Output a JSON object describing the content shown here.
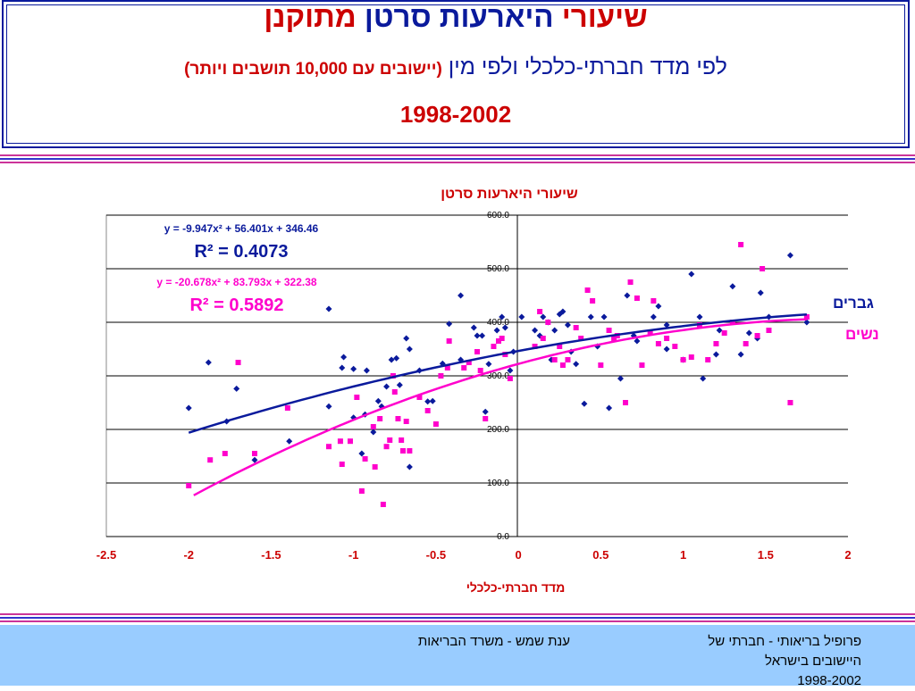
{
  "slide": {
    "title_part1": "שיעורי",
    "title_part2": "היארעות סרטן",
    "title_part3": "מתוקנן",
    "subtitle_main": "לפי מדד חברתי-כלכלי ולפי מין",
    "subtitle_note": "(יישובים עם 10,000 תושבים ויותר)",
    "years": "1998-2002",
    "colors": {
      "title_red": "#cc0000",
      "title_blue": "#0a1a9c",
      "stripe_pink": "#cc3399",
      "stripe_blue": "#3333cc",
      "footer_bg": "#99ccff"
    }
  },
  "footer": {
    "right_line1": "פרופיל בריאותי - חברתי של",
    "right_line2": "היישובים בישראל",
    "right_line3": "1998-2002",
    "center": "ענת שמש - משרד הבריאות"
  },
  "chart_data": {
    "type": "scatter",
    "title": "שיעורי היארעות סרטן",
    "xlabel": "מדד חברתי-כלכלי",
    "ylabel": "",
    "xlim": [
      -2.5,
      2
    ],
    "ylim": [
      0,
      600
    ],
    "xticks": [
      "-2.5",
      "-2",
      "-1.5",
      "-1",
      "-0.5",
      "0",
      "0.5",
      "1",
      "1.5",
      "2"
    ],
    "yticks": [
      "0.0",
      "100.0",
      "200.0",
      "300.0",
      "400.0",
      "500.0",
      "600.0"
    ],
    "grid": "horizontal",
    "series": [
      {
        "name": "גברים",
        "color": "#0a1a9c",
        "marker": "diamond",
        "equation": "y = -9.947x² + 56.401x + 346.46",
        "r2": "R² = 0.4073",
        "trend": {
          "a": -9.947,
          "b": 56.401,
          "c": 346.46,
          "x_range": [
            -2.0,
            1.75
          ]
        },
        "points": [
          [
            -2.0,
            240
          ],
          [
            -1.88,
            325
          ],
          [
            -1.77,
            215
          ],
          [
            -1.71,
            276
          ],
          [
            -1.6,
            143
          ],
          [
            -1.39,
            178
          ],
          [
            -1.15,
            425
          ],
          [
            -1.15,
            243
          ],
          [
            -1.07,
            315
          ],
          [
            -1.06,
            335
          ],
          [
            -1.0,
            313
          ],
          [
            -1.0,
            222
          ],
          [
            -0.95,
            155
          ],
          [
            -0.93,
            228
          ],
          [
            -0.92,
            310
          ],
          [
            -0.88,
            195
          ],
          [
            -0.85,
            253
          ],
          [
            -0.83,
            243
          ],
          [
            -0.8,
            280
          ],
          [
            -0.77,
            330
          ],
          [
            -0.74,
            333
          ],
          [
            -0.72,
            283
          ],
          [
            -0.68,
            370
          ],
          [
            -0.66,
            350
          ],
          [
            -0.66,
            130
          ],
          [
            -0.6,
            310
          ],
          [
            -0.55,
            252
          ],
          [
            -0.52,
            253
          ],
          [
            -0.46,
            323
          ],
          [
            -0.42,
            397
          ],
          [
            -0.35,
            450
          ],
          [
            -0.35,
            330
          ],
          [
            -0.27,
            390
          ],
          [
            -0.25,
            375
          ],
          [
            -0.22,
            375
          ],
          [
            -0.2,
            233
          ],
          [
            -0.18,
            322
          ],
          [
            -0.13,
            385
          ],
          [
            -0.1,
            410
          ],
          [
            -0.08,
            390
          ],
          [
            -0.05,
            310
          ],
          [
            -0.03,
            345
          ],
          [
            0.02,
            410
          ],
          [
            0.1,
            385
          ],
          [
            0.13,
            375
          ],
          [
            0.15,
            410
          ],
          [
            0.18,
            400
          ],
          [
            0.2,
            330
          ],
          [
            0.22,
            385
          ],
          [
            0.25,
            415
          ],
          [
            0.27,
            420
          ],
          [
            0.3,
            395
          ],
          [
            0.32,
            345
          ],
          [
            0.35,
            322
          ],
          [
            0.4,
            248
          ],
          [
            0.44,
            410
          ],
          [
            0.48,
            355
          ],
          [
            0.52,
            410
          ],
          [
            0.55,
            240
          ],
          [
            0.62,
            295
          ],
          [
            0.66,
            450
          ],
          [
            0.7,
            375
          ],
          [
            0.72,
            365
          ],
          [
            0.82,
            410
          ],
          [
            0.85,
            430
          ],
          [
            0.9,
            395
          ],
          [
            0.9,
            350
          ],
          [
            1.0,
            330
          ],
          [
            1.05,
            490
          ],
          [
            1.1,
            410
          ],
          [
            1.12,
            295
          ],
          [
            1.2,
            340
          ],
          [
            1.22,
            385
          ],
          [
            1.3,
            467
          ],
          [
            1.35,
            340
          ],
          [
            1.4,
            380
          ],
          [
            1.45,
            370
          ],
          [
            1.47,
            455
          ],
          [
            1.52,
            410
          ],
          [
            1.65,
            525
          ],
          [
            1.75,
            400
          ]
        ]
      },
      {
        "name": "נשים",
        "color": "#ff00cc",
        "marker": "square",
        "equation": "y = -20.678x² + 83.793x + 322.38",
        "r2": "R² = 0.5892",
        "trend": {
          "a": -20.678,
          "b": 83.793,
          "c": 322.38,
          "x_range": [
            -1.97,
            1.75
          ]
        },
        "points": [
          [
            -2.0,
            95
          ],
          [
            -1.87,
            143
          ],
          [
            -1.78,
            155
          ],
          [
            -1.7,
            325
          ],
          [
            -1.6,
            155
          ],
          [
            -1.4,
            240
          ],
          [
            -1.15,
            168
          ],
          [
            -1.08,
            178
          ],
          [
            -1.07,
            135
          ],
          [
            -1.02,
            178
          ],
          [
            -0.98,
            260
          ],
          [
            -0.95,
            85
          ],
          [
            -0.93,
            145
          ],
          [
            -0.88,
            205
          ],
          [
            -0.87,
            130
          ],
          [
            -0.84,
            220
          ],
          [
            -0.82,
            60
          ],
          [
            -0.8,
            168
          ],
          [
            -0.78,
            180
          ],
          [
            -0.76,
            300
          ],
          [
            -0.75,
            270
          ],
          [
            -0.73,
            220
          ],
          [
            -0.71,
            180
          ],
          [
            -0.7,
            160
          ],
          [
            -0.68,
            215
          ],
          [
            -0.66,
            160
          ],
          [
            -0.6,
            260
          ],
          [
            -0.55,
            235
          ],
          [
            -0.5,
            210
          ],
          [
            -0.47,
            300
          ],
          [
            -0.43,
            315
          ],
          [
            -0.42,
            365
          ],
          [
            -0.33,
            315
          ],
          [
            -0.3,
            325
          ],
          [
            -0.25,
            345
          ],
          [
            -0.23,
            310
          ],
          [
            -0.2,
            220
          ],
          [
            -0.15,
            355
          ],
          [
            -0.12,
            365
          ],
          [
            -0.1,
            370
          ],
          [
            -0.08,
            340
          ],
          [
            -0.05,
            295
          ],
          [
            0.1,
            355
          ],
          [
            0.13,
            420
          ],
          [
            0.15,
            370
          ],
          [
            0.18,
            400
          ],
          [
            0.22,
            330
          ],
          [
            0.25,
            355
          ],
          [
            0.27,
            320
          ],
          [
            0.3,
            330
          ],
          [
            0.35,
            390
          ],
          [
            0.38,
            370
          ],
          [
            0.42,
            460
          ],
          [
            0.45,
            440
          ],
          [
            0.5,
            320
          ],
          [
            0.55,
            385
          ],
          [
            0.58,
            370
          ],
          [
            0.6,
            375
          ],
          [
            0.65,
            250
          ],
          [
            0.68,
            475
          ],
          [
            0.72,
            445
          ],
          [
            0.75,
            320
          ],
          [
            0.8,
            380
          ],
          [
            0.82,
            440
          ],
          [
            0.85,
            360
          ],
          [
            0.9,
            370
          ],
          [
            0.95,
            355
          ],
          [
            1.0,
            330
          ],
          [
            1.05,
            335
          ],
          [
            1.1,
            395
          ],
          [
            1.15,
            330
          ],
          [
            1.2,
            360
          ],
          [
            1.25,
            380
          ],
          [
            1.3,
            400
          ],
          [
            1.35,
            545
          ],
          [
            1.38,
            360
          ],
          [
            1.45,
            375
          ],
          [
            1.48,
            500
          ],
          [
            1.52,
            385
          ],
          [
            1.65,
            250
          ],
          [
            1.75,
            410
          ]
        ]
      }
    ]
  }
}
